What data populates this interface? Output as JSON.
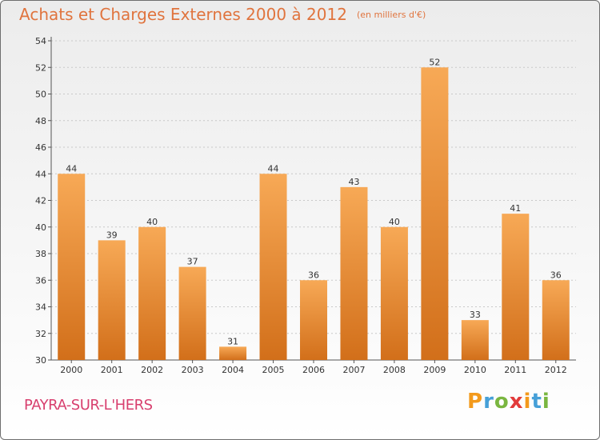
{
  "title": "Achats et Charges Externes 2000 à 2012",
  "subtitle": "(en milliers d'€)",
  "town": "PAYRA-SUR-L'HERS",
  "logo": {
    "letters": [
      "P",
      "r",
      "o",
      "x",
      "i",
      "t",
      "i"
    ],
    "colors": [
      "#f39a1c",
      "#46a0d8",
      "#7ab640",
      "#e23b3b",
      "#f39a1c",
      "#46a0d8",
      "#7ab640"
    ]
  },
  "colors": {
    "bar_top": "#f7a956",
    "bar_bottom": "#d26f1a",
    "title": "#e0743e",
    "town": "#d83f6e"
  },
  "chart_data": {
    "type": "bar",
    "categories": [
      "2000",
      "2001",
      "2002",
      "2003",
      "2004",
      "2005",
      "2006",
      "2007",
      "2008",
      "2009",
      "2010",
      "2011",
      "2012"
    ],
    "values": [
      44,
      39,
      40,
      37,
      31,
      44,
      36,
      43,
      40,
      52,
      33,
      41,
      36
    ],
    "data_labels": [
      "44",
      "39",
      "40",
      "37",
      "31",
      "44",
      "36",
      "43",
      "40",
      "52",
      "33",
      "41",
      "36"
    ],
    "ylim": [
      30,
      54
    ],
    "yticks": [
      30,
      32,
      34,
      36,
      38,
      40,
      42,
      44,
      46,
      48,
      50,
      52,
      54
    ],
    "grid": "horizontal dotted",
    "xlabel": "",
    "ylabel": ""
  }
}
